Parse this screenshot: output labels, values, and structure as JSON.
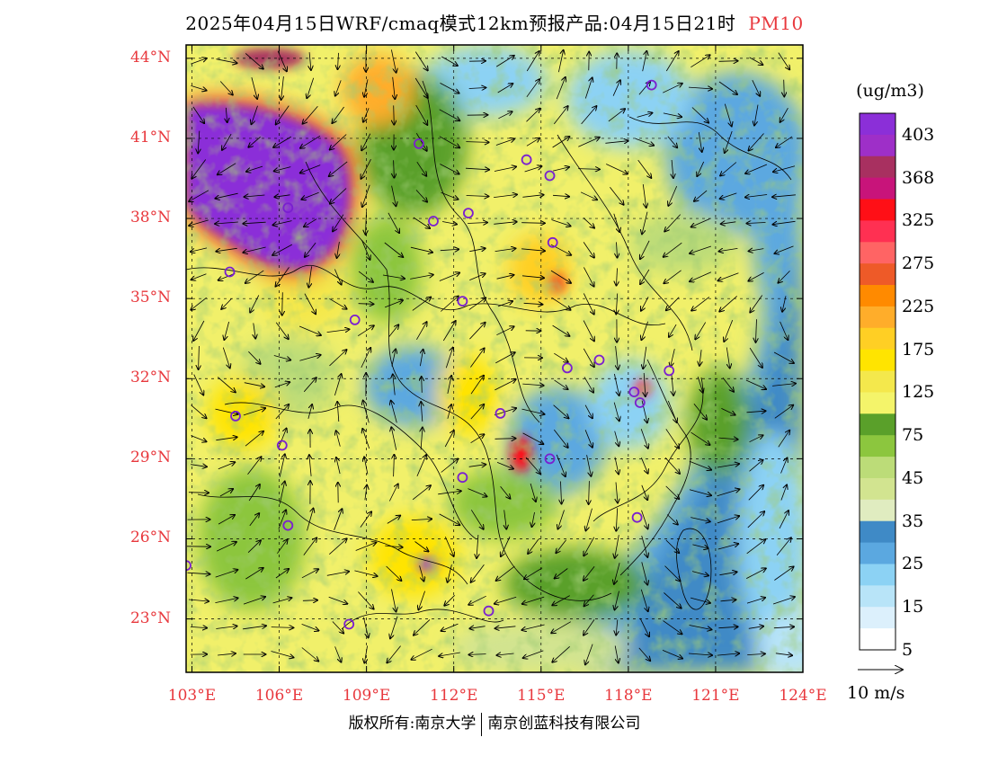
{
  "title": {
    "main": "2025年04月15日WRF/cmaq模式12km预报产品:04月15日21时",
    "pollutant": "PM10"
  },
  "map": {
    "lat_labels": [
      "44°N",
      "41°N",
      "38°N",
      "35°N",
      "32°N",
      "29°N",
      "26°N",
      "23°N"
    ],
    "lon_labels": [
      "103°E",
      "106°E",
      "109°E",
      "112°E",
      "115°E",
      "118°E",
      "121°E",
      "124°E"
    ],
    "lon_min": 102.8,
    "lon_max": 124.0,
    "lat_min": 21.0,
    "lat_max": 44.5
  },
  "colorbar": {
    "unit": "(ug/m3)",
    "labels": [
      "403",
      "368",
      "325",
      "275",
      "225",
      "175",
      "125",
      "75",
      "45",
      "35",
      "25",
      "15",
      "5"
    ],
    "colors": [
      "#8b2fd8",
      "#9e2fc8",
      "#a83060",
      "#c8147a",
      "#ff0f16",
      "#ff3052",
      "#ff6464",
      "#ee5a28",
      "#ff8a00",
      "#ffad2a",
      "#ffcf24",
      "#ffe400",
      "#f4e84c",
      "#f4f46a",
      "#5aa02a",
      "#8cc63e",
      "#bcdc78",
      "#d2e490",
      "#e0ecc0",
      "#3f8ac6",
      "#5ba8e0",
      "#8cd2f4",
      "#b8e4f8",
      "#dcf0fc",
      "#ffffff"
    ]
  },
  "reference_vector": {
    "label": "10 m/s"
  },
  "cities": [
    {
      "lon": 118.8,
      "lat": 43.0
    },
    {
      "lon": 110.8,
      "lat": 40.8
    },
    {
      "lon": 114.5,
      "lat": 40.2
    },
    {
      "lon": 115.3,
      "lat": 39.6
    },
    {
      "lon": 106.3,
      "lat": 38.4
    },
    {
      "lon": 111.3,
      "lat": 37.9
    },
    {
      "lon": 112.5,
      "lat": 38.2
    },
    {
      "lon": 115.4,
      "lat": 37.1
    },
    {
      "lon": 104.3,
      "lat": 36.0
    },
    {
      "lon": 112.3,
      "lat": 34.9
    },
    {
      "lon": 108.6,
      "lat": 34.2
    },
    {
      "lon": 115.9,
      "lat": 32.4
    },
    {
      "lon": 117.0,
      "lat": 32.7
    },
    {
      "lon": 119.4,
      "lat": 32.3
    },
    {
      "lon": 118.2,
      "lat": 31.5
    },
    {
      "lon": 118.4,
      "lat": 31.1
    },
    {
      "lon": 104.5,
      "lat": 30.6
    },
    {
      "lon": 113.6,
      "lat": 30.7
    },
    {
      "lon": 106.1,
      "lat": 29.5
    },
    {
      "lon": 115.3,
      "lat": 29.0
    },
    {
      "lon": 112.3,
      "lat": 28.3
    },
    {
      "lon": 106.3,
      "lat": 26.5
    },
    {
      "lon": 118.3,
      "lat": 26.8
    },
    {
      "lon": 102.8,
      "lat": 25.0
    },
    {
      "lon": 108.4,
      "lat": 22.8
    },
    {
      "lon": 113.2,
      "lat": 23.3
    }
  ],
  "footer": {
    "left": "版权所有:南京大学",
    "right": "南京创蓝科技有限公司"
  }
}
